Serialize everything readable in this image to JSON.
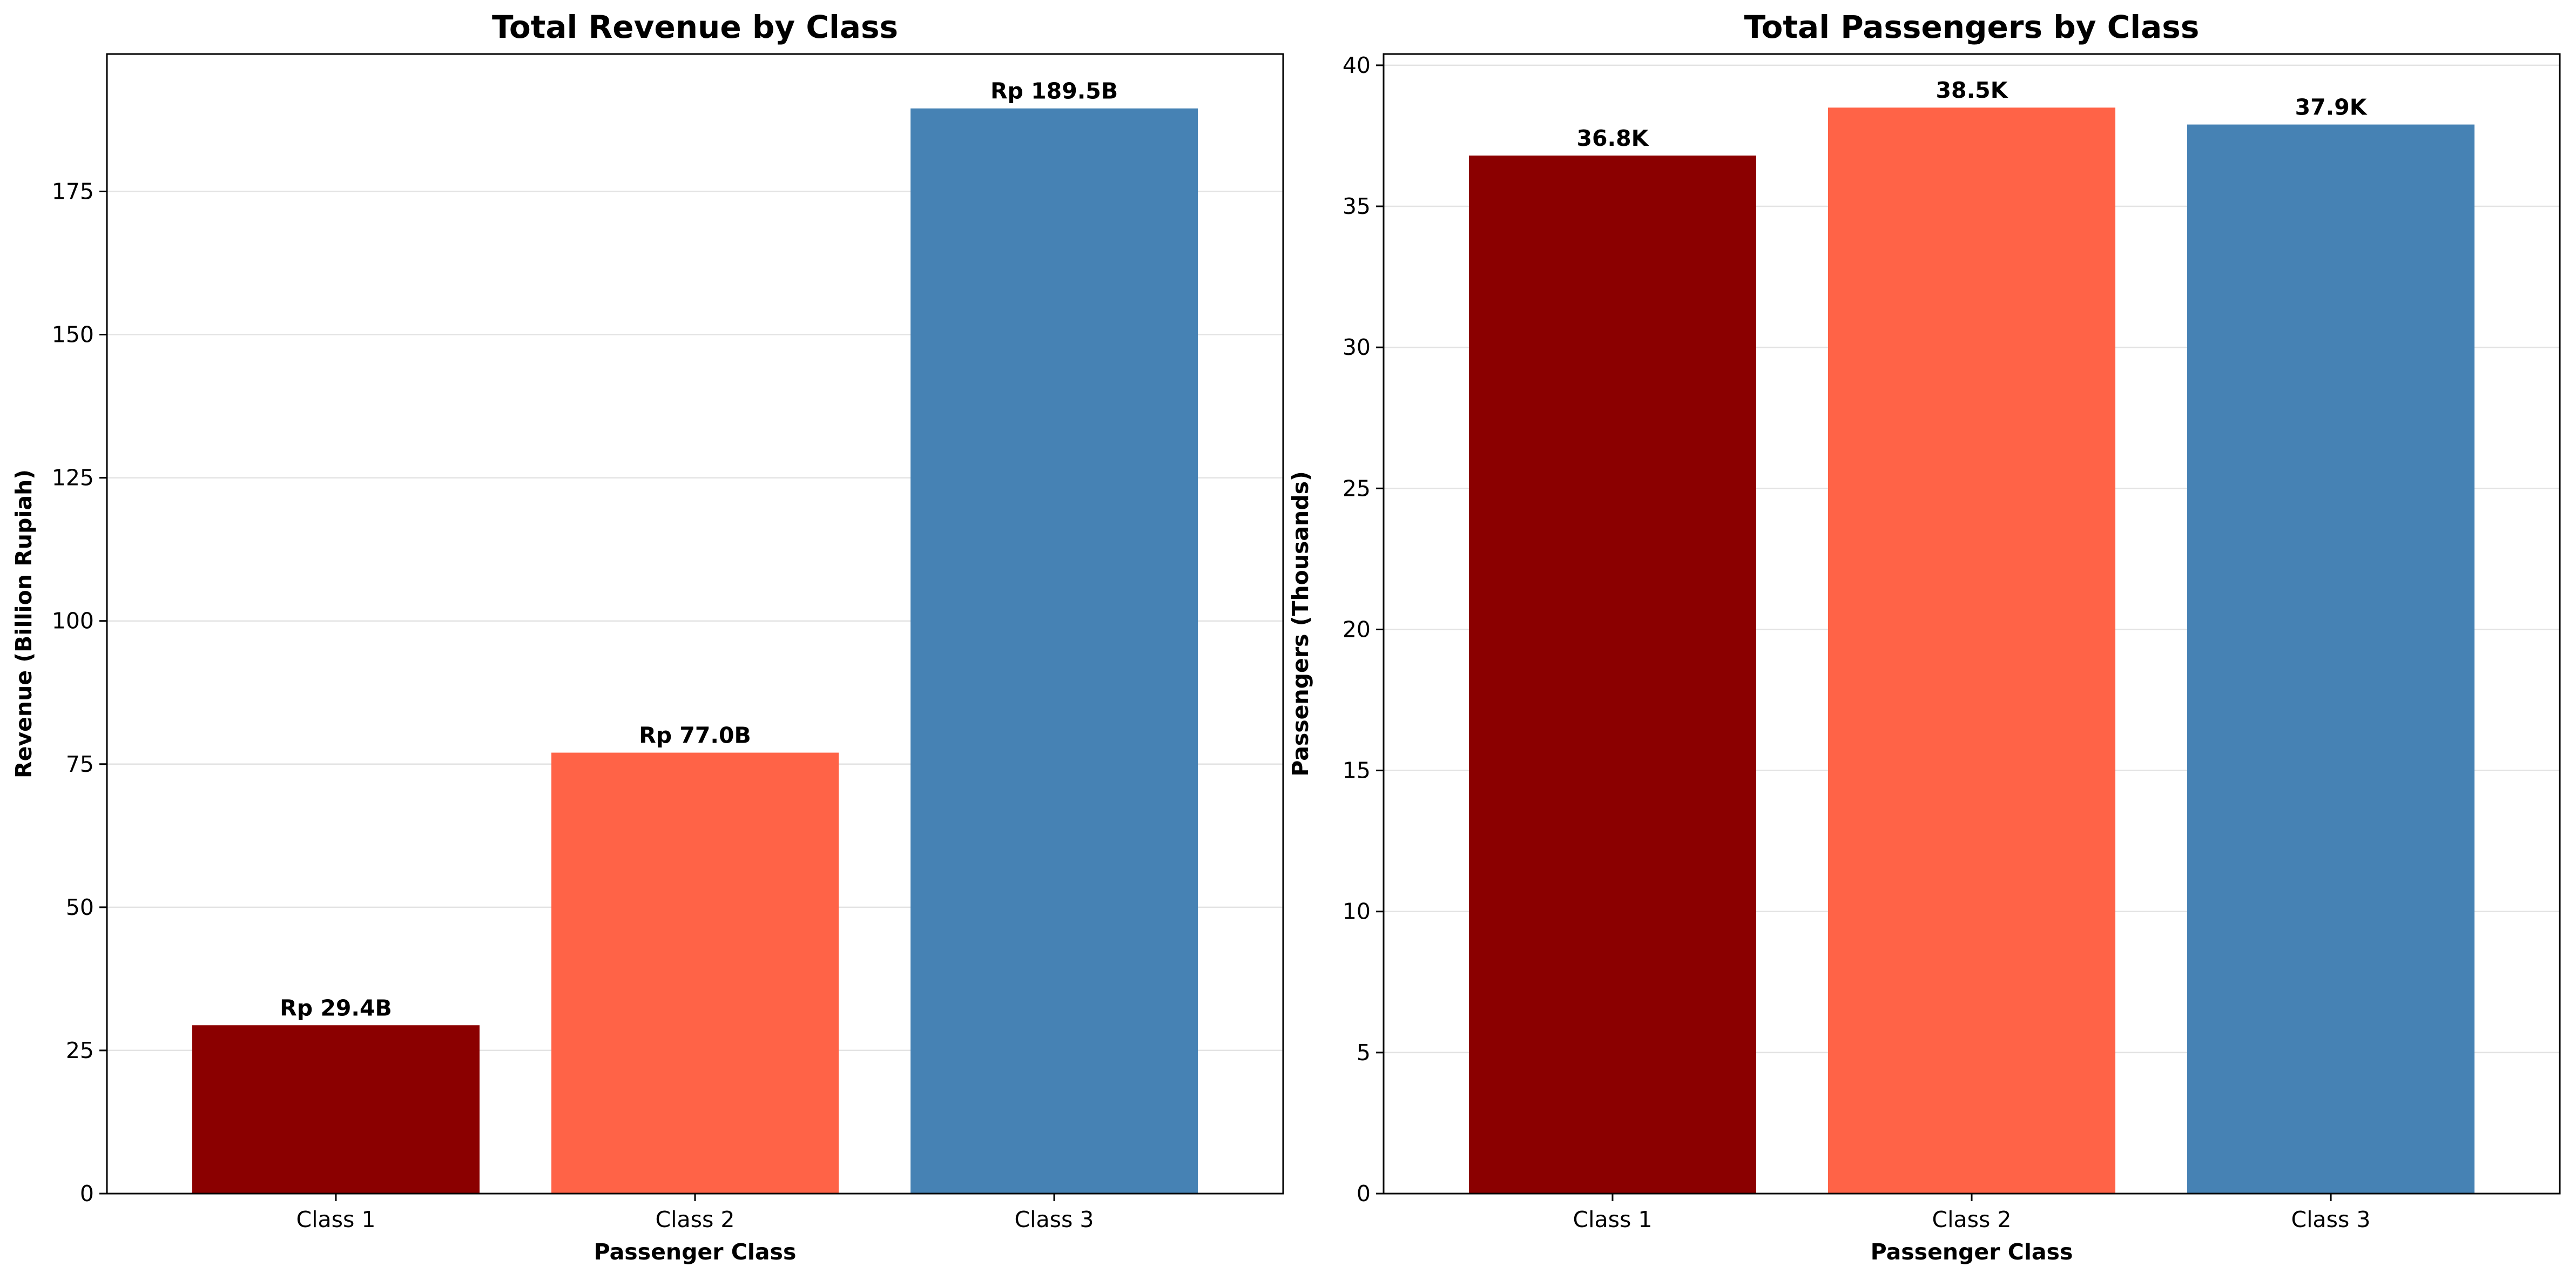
{
  "chart_data": [
    {
      "type": "bar",
      "title": "Total Revenue by Class",
      "xlabel": "Passenger Class",
      "ylabel": "Revenue (Billion Rupiah)",
      "categories": [
        "Class 1",
        "Class 2",
        "Class 3"
      ],
      "values": [
        29.4,
        77.0,
        189.5
      ],
      "data_labels": [
        "Rp 29.4B",
        "Rp 77.0B",
        "Rp 189.5B"
      ],
      "colors": [
        "#8b0000",
        "#ff6347",
        "#4682b4"
      ],
      "ylim": [
        0,
        199
      ],
      "yticks": [
        0,
        25,
        50,
        75,
        100,
        125,
        150,
        175
      ],
      "grid": true,
      "legend": "none"
    },
    {
      "type": "bar",
      "title": "Total Passengers by Class",
      "xlabel": "Passenger Class",
      "ylabel": "Passengers (Thousands)",
      "categories": [
        "Class 1",
        "Class 2",
        "Class 3"
      ],
      "values": [
        36.8,
        38.5,
        37.9
      ],
      "data_labels": [
        "36.8K",
        "38.5K",
        "37.9K"
      ],
      "colors": [
        "#8b0000",
        "#ff6347",
        "#4682b4"
      ],
      "ylim": [
        0,
        40.4
      ],
      "yticks": [
        0,
        5,
        10,
        15,
        20,
        25,
        30,
        35,
        40
      ],
      "grid": true,
      "legend": "none"
    }
  ]
}
